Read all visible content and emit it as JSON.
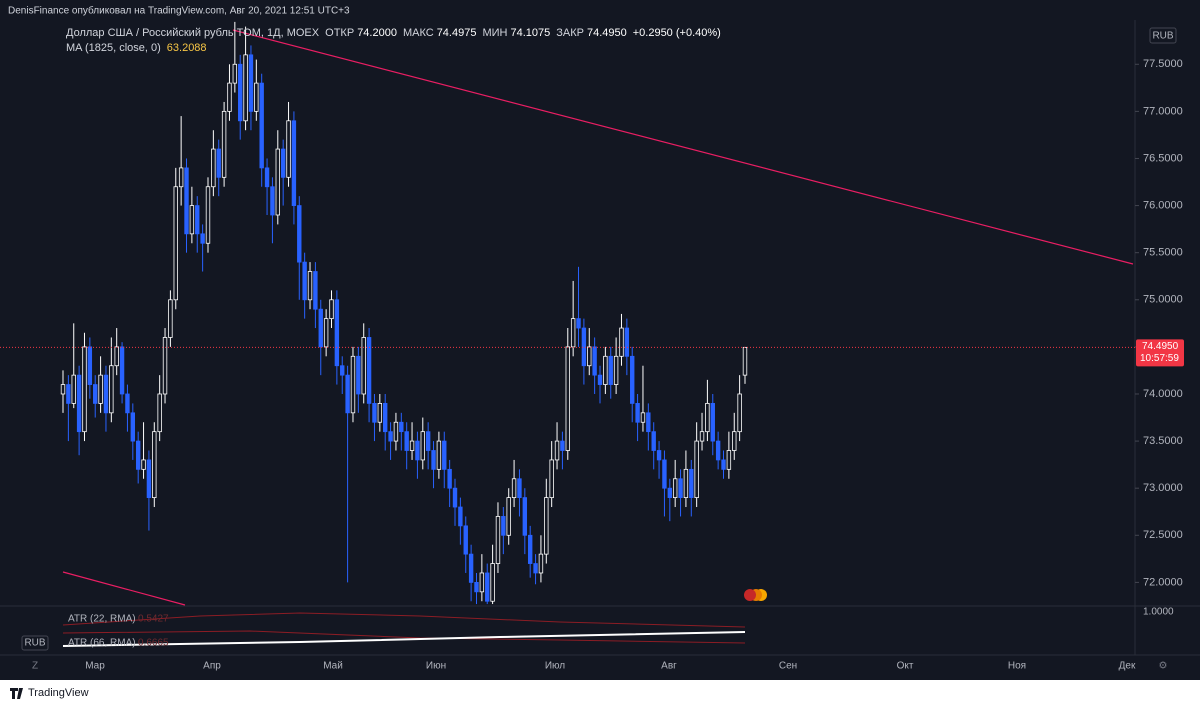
{
  "chart_data": {
    "type": "candlestick",
    "header": "DenisFinance опубликовал на TradingView.com, Авг 20, 2021 12:51 UTC+3",
    "title": "Доллар США / Российский рубль TOM, 1Д, MOEX",
    "legend": [
      {
        "name": "ОТКР",
        "value": {
          "value": 74.2,
          "label": "74.2000"
        }
      },
      {
        "name": "МАКС",
        "value": {
          "value": 74.4975,
          "label": "74.4975"
        }
      },
      {
        "name": "МИН",
        "value": {
          "value": 74.1075,
          "label": "74.1075"
        }
      },
      {
        "name": "ЗАКР",
        "value": {
          "value": 74.495,
          "label": "74.4950"
        }
      }
    ],
    "change": "+0.2950 (+0.40%)",
    "ma_label": "MA (1825, close, 0)",
    "ma_value": {
      "value": 63.2088,
      "label": "63.2088"
    },
    "currency": "RUB",
    "up_color": "#ffffff",
    "down_color": "#2962ff",
    "price_line_color": "#f23645",
    "trendline_color": "#e91e63",
    "last_price": {
      "value": 74.495,
      "label": "74.4950"
    },
    "countdown": "10:57:59",
    "ylim": [
      71.76,
      77.97
    ],
    "yticks": [
      {
        "value": 72.0,
        "label": "72.0000"
      },
      {
        "value": 72.5,
        "label": "72.5000"
      },
      {
        "value": 73.0,
        "label": "73.0000"
      },
      {
        "value": 73.5,
        "label": "73.5000"
      },
      {
        "value": 74.0,
        "label": "74.0000"
      },
      {
        "value": 74.5,
        "label": "74.5000"
      },
      {
        "value": 75.0,
        "label": "75.0000"
      },
      {
        "value": 75.5,
        "label": "75.5000"
      },
      {
        "value": 76.0,
        "label": "76.0000"
      },
      {
        "value": 76.5,
        "label": "76.5000"
      },
      {
        "value": 77.0,
        "label": "77.0000"
      },
      {
        "value": 77.5,
        "label": "77.5000"
      }
    ],
    "time_labels": [
      "Мар",
      "Апр",
      "Май",
      "Июн",
      "Июл",
      "Авг",
      "Сен",
      "Окт",
      "Ноя",
      "Дек"
    ],
    "indicators": [
      {
        "name": "ATR (22, RMA)",
        "value": "0.5427"
      },
      {
        "name": "ATR (66, RMA)",
        "value": "0.6665"
      }
    ],
    "pane_tick": "1.0000",
    "pane_currency": "RUB",
    "footer": "TradingView",
    "ohlc": [
      [
        74.0,
        74.25,
        73.8,
        74.1
      ],
      [
        74.1,
        74.2,
        73.5,
        73.9
      ],
      [
        73.9,
        74.75,
        73.85,
        74.2
      ],
      [
        74.2,
        74.3,
        73.35,
        73.6
      ],
      [
        73.6,
        74.65,
        73.5,
        74.5
      ],
      [
        74.5,
        74.6,
        73.95,
        74.1
      ],
      [
        74.1,
        74.2,
        73.75,
        73.9
      ],
      [
        73.9,
        74.4,
        73.8,
        74.2
      ],
      [
        74.2,
        74.3,
        73.6,
        73.8
      ],
      [
        73.8,
        74.6,
        73.7,
        74.3
      ],
      [
        74.3,
        74.7,
        74.2,
        74.5
      ],
      [
        74.5,
        74.55,
        73.9,
        74.0
      ],
      [
        74.0,
        74.1,
        73.6,
        73.8
      ],
      [
        73.8,
        73.9,
        73.3,
        73.5
      ],
      [
        73.5,
        73.6,
        73.05,
        73.2
      ],
      [
        73.2,
        73.7,
        73.1,
        73.3
      ],
      [
        73.3,
        73.4,
        72.55,
        72.9
      ],
      [
        72.9,
        73.7,
        72.8,
        73.6
      ],
      [
        73.6,
        74.2,
        73.5,
        74.0
      ],
      [
        74.0,
        74.7,
        73.9,
        74.6
      ],
      [
        74.6,
        75.1,
        74.5,
        75.0
      ],
      [
        75.0,
        76.4,
        74.9,
        76.2
      ],
      [
        76.2,
        76.95,
        76.0,
        76.4
      ],
      [
        76.4,
        76.5,
        75.5,
        75.7
      ],
      [
        75.7,
        76.2,
        75.6,
        76.0
      ],
      [
        76.0,
        76.1,
        75.5,
        75.7
      ],
      [
        75.7,
        75.8,
        75.3,
        75.6
      ],
      [
        75.6,
        76.3,
        75.5,
        76.2
      ],
      [
        76.2,
        76.8,
        76.1,
        76.6
      ],
      [
        76.6,
        76.7,
        76.1,
        76.3
      ],
      [
        76.3,
        77.1,
        76.2,
        77.0
      ],
      [
        77.0,
        77.5,
        76.9,
        77.3
      ],
      [
        77.3,
        77.95,
        77.2,
        77.5
      ],
      [
        77.5,
        77.6,
        76.7,
        76.9
      ],
      [
        76.9,
        77.9,
        76.8,
        77.6
      ],
      [
        77.6,
        77.7,
        76.8,
        77.0
      ],
      [
        77.0,
        77.55,
        76.9,
        77.3
      ],
      [
        77.3,
        77.4,
        76.2,
        76.4
      ],
      [
        76.4,
        76.5,
        75.9,
        76.2
      ],
      [
        76.2,
        76.3,
        75.6,
        75.9
      ],
      [
        75.9,
        76.8,
        75.8,
        76.6
      ],
      [
        76.6,
        76.7,
        76.0,
        76.3
      ],
      [
        76.3,
        77.1,
        76.2,
        76.9
      ],
      [
        76.9,
        77.0,
        75.8,
        76.0
      ],
      [
        76.0,
        76.1,
        75.0,
        75.4
      ],
      [
        75.4,
        75.5,
        74.8,
        75.0
      ],
      [
        75.0,
        75.4,
        74.9,
        75.3
      ],
      [
        75.3,
        75.4,
        74.7,
        74.9
      ],
      [
        74.9,
        75.0,
        74.2,
        74.5
      ],
      [
        74.5,
        74.9,
        74.4,
        74.8
      ],
      [
        74.8,
        75.1,
        74.7,
        75.0
      ],
      [
        75.0,
        75.1,
        74.1,
        74.3
      ],
      [
        74.3,
        74.4,
        74.0,
        74.2
      ],
      [
        74.2,
        74.3,
        72.0,
        73.8
      ],
      [
        73.8,
        74.5,
        73.7,
        74.4
      ],
      [
        74.4,
        74.5,
        73.8,
        74.0
      ],
      [
        74.0,
        74.75,
        73.9,
        74.6
      ],
      [
        74.6,
        74.7,
        73.7,
        73.9
      ],
      [
        73.9,
        74.0,
        73.5,
        73.7
      ],
      [
        73.7,
        74.0,
        73.6,
        73.9
      ],
      [
        73.9,
        74.0,
        73.4,
        73.6
      ],
      [
        73.6,
        73.7,
        73.3,
        73.5
      ],
      [
        73.5,
        73.8,
        73.4,
        73.7
      ],
      [
        73.7,
        73.8,
        73.4,
        73.6
      ],
      [
        73.6,
        73.7,
        73.2,
        73.4
      ],
      [
        73.4,
        73.7,
        73.3,
        73.5
      ],
      [
        73.5,
        73.6,
        73.1,
        73.3
      ],
      [
        73.3,
        73.75,
        73.2,
        73.6
      ],
      [
        73.6,
        73.7,
        73.2,
        73.4
      ],
      [
        73.4,
        73.5,
        73.0,
        73.2
      ],
      [
        73.2,
        73.6,
        73.1,
        73.5
      ],
      [
        73.5,
        73.6,
        73.0,
        73.2
      ],
      [
        73.2,
        73.3,
        72.8,
        73.0
      ],
      [
        73.0,
        73.1,
        72.6,
        72.8
      ],
      [
        72.8,
        72.9,
        72.4,
        72.6
      ],
      [
        72.6,
        72.7,
        72.1,
        72.3
      ],
      [
        72.3,
        72.4,
        71.8,
        72.0
      ],
      [
        72.0,
        72.1,
        71.77,
        71.9
      ],
      [
        71.9,
        72.3,
        71.8,
        72.1
      ],
      [
        72.1,
        72.2,
        71.77,
        71.8
      ],
      [
        71.8,
        72.4,
        71.77,
        72.2
      ],
      [
        72.2,
        72.85,
        72.1,
        72.7
      ],
      [
        72.7,
        72.8,
        72.3,
        72.5
      ],
      [
        72.5,
        73.0,
        72.4,
        72.9
      ],
      [
        72.9,
        73.3,
        72.8,
        73.1
      ],
      [
        73.1,
        73.2,
        72.7,
        72.9
      ],
      [
        72.9,
        73.0,
        72.3,
        72.5
      ],
      [
        72.5,
        72.6,
        72.05,
        72.2
      ],
      [
        72.2,
        72.3,
        71.98,
        72.1
      ],
      [
        72.1,
        72.5,
        72.0,
        72.3
      ],
      [
        72.3,
        73.1,
        72.2,
        72.9
      ],
      [
        72.9,
        73.5,
        72.8,
        73.3
      ],
      [
        73.3,
        73.7,
        73.2,
        73.5
      ],
      [
        73.5,
        73.6,
        73.2,
        73.4
      ],
      [
        73.4,
        74.7,
        73.3,
        74.5
      ],
      [
        74.5,
        75.2,
        74.4,
        74.8
      ],
      [
        74.8,
        75.35,
        74.5,
        74.7
      ],
      [
        74.7,
        74.8,
        74.1,
        74.3
      ],
      [
        74.3,
        74.7,
        74.2,
        74.5
      ],
      [
        74.5,
        74.6,
        74.0,
        74.2
      ],
      [
        74.2,
        74.3,
        73.9,
        74.1
      ],
      [
        74.1,
        74.5,
        74.0,
        74.4
      ],
      [
        74.4,
        74.5,
        73.95,
        74.1
      ],
      [
        74.1,
        74.6,
        74.0,
        74.4
      ],
      [
        74.4,
        74.85,
        74.3,
        74.7
      ],
      [
        74.7,
        74.8,
        74.2,
        74.4
      ],
      [
        74.4,
        74.5,
        73.7,
        73.9
      ],
      [
        73.9,
        74.0,
        73.5,
        73.7
      ],
      [
        73.7,
        74.3,
        73.6,
        73.8
      ],
      [
        73.8,
        73.9,
        73.4,
        73.6
      ],
      [
        73.6,
        73.7,
        73.2,
        73.4
      ],
      [
        73.4,
        73.5,
        73.1,
        73.3
      ],
      [
        73.3,
        73.4,
        72.7,
        73.0
      ],
      [
        73.0,
        73.1,
        72.65,
        72.9
      ],
      [
        72.9,
        73.3,
        72.8,
        73.1
      ],
      [
        73.1,
        73.2,
        72.7,
        72.9
      ],
      [
        72.9,
        73.4,
        72.8,
        73.2
      ],
      [
        73.2,
        73.3,
        72.7,
        72.9
      ],
      [
        72.9,
        73.7,
        72.8,
        73.5
      ],
      [
        73.5,
        73.8,
        73.4,
        73.6
      ],
      [
        73.6,
        74.15,
        73.5,
        73.9
      ],
      [
        73.9,
        74.0,
        73.35,
        73.5
      ],
      [
        73.5,
        73.6,
        73.2,
        73.3
      ],
      [
        73.3,
        73.4,
        73.1,
        73.2
      ],
      [
        73.2,
        73.6,
        73.1,
        73.4
      ],
      [
        73.4,
        73.8,
        73.3,
        73.6
      ],
      [
        73.6,
        74.2,
        73.5,
        74.0
      ],
      [
        74.2,
        74.4975,
        74.1075,
        74.495
      ]
    ]
  }
}
